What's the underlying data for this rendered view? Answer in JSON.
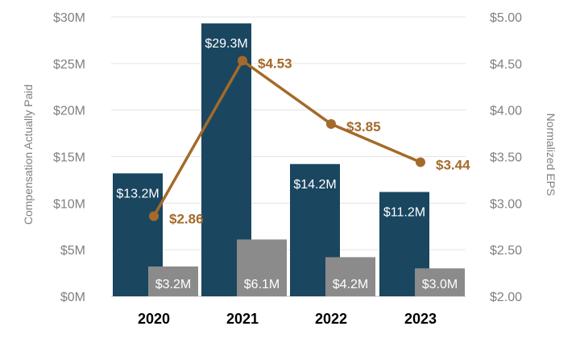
{
  "chart_data": {
    "type": "bar",
    "categories": [
      "2020",
      "2021",
      "2022",
      "2023"
    ],
    "y_axis_left": {
      "label": "Compensation Actually Paid",
      "ylim": [
        0,
        30
      ],
      "tick_labels": [
        "$0M",
        "$5M",
        "$10M",
        "$15M",
        "$20M",
        "$25M",
        "$30M"
      ]
    },
    "y_axis_right": {
      "label": "Normalized EPS",
      "ylim": [
        2.0,
        5.0
      ],
      "tick_labels": [
        "$2.00",
        "$2.50",
        "$3.00",
        "$3.50",
        "$4.00",
        "$4.50",
        "$5.00"
      ]
    },
    "series": [
      {
        "kind": "bar",
        "axis": "left",
        "color": "#1a4660",
        "values": [
          13.2,
          29.3,
          14.2,
          11.2
        ],
        "labels": [
          "$13.2M",
          "$29.3M",
          "$14.2M",
          "$11.2M"
        ]
      },
      {
        "kind": "bar",
        "axis": "left",
        "color": "#8b8b8b",
        "values": [
          3.2,
          6.1,
          4.2,
          3.0
        ],
        "labels": [
          "$3.2M",
          "$6.1M",
          "$4.2M",
          "$3.0M"
        ]
      },
      {
        "kind": "line",
        "axis": "right",
        "color": "#a46a29",
        "values": [
          2.86,
          4.53,
          3.85,
          3.44
        ],
        "labels": [
          "$2.86",
          "$4.53",
          "$3.85",
          "$3.44"
        ]
      }
    ],
    "grid": "horizontal",
    "legend": "none"
  }
}
